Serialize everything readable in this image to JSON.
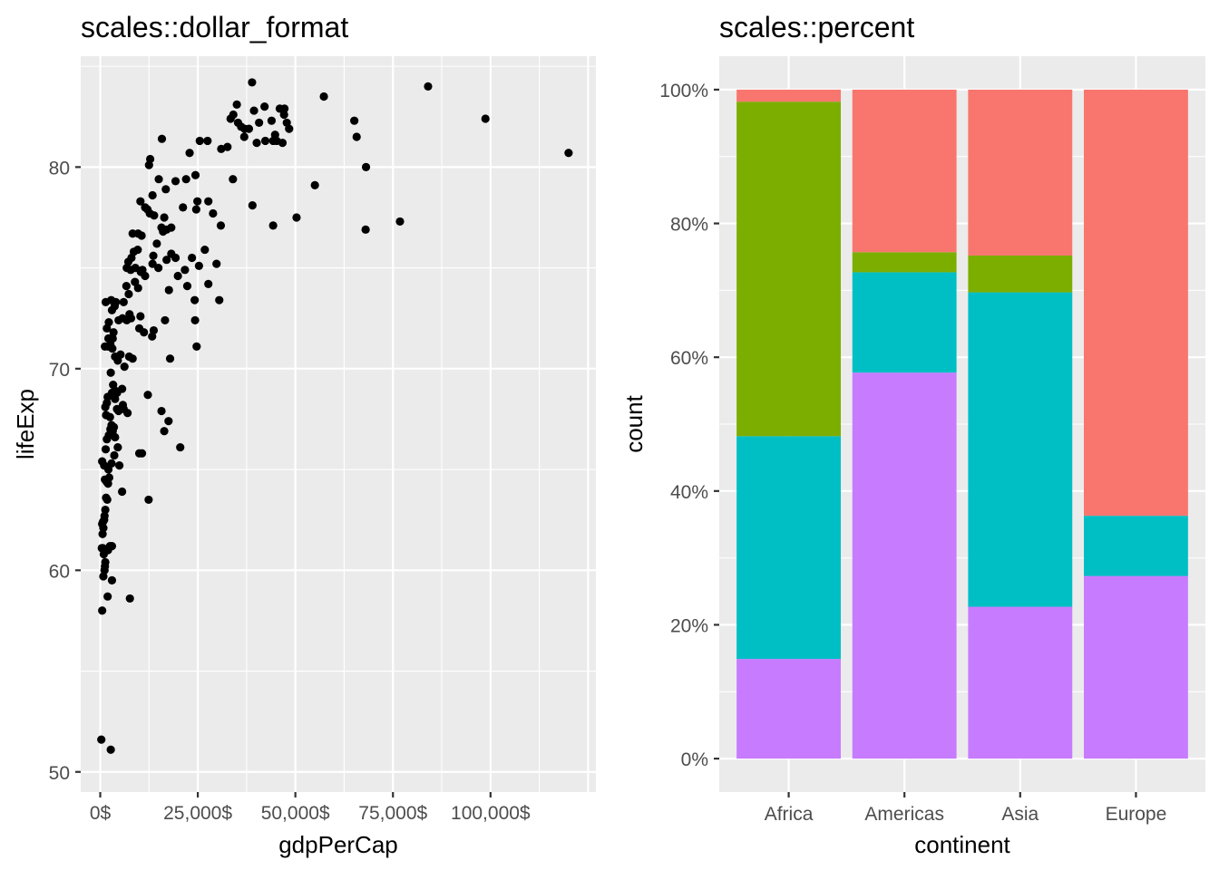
{
  "chart_data": [
    {
      "type": "scatter",
      "title": "scales::dollar_format",
      "xlabel": "gdpPerCap",
      "ylabel": "lifeExp",
      "xlim": [
        -5000,
        127000
      ],
      "ylim": [
        49,
        85.5
      ],
      "x_breaks": [
        0,
        25000,
        50000,
        75000,
        100000
      ],
      "x_tick_labels": [
        "0$",
        "25,000$",
        "50,000$",
        "75,000$",
        "100,000$"
      ],
      "y_breaks": [
        50,
        60,
        70,
        80
      ],
      "y_tick_labels": [
        "50",
        "60",
        "70",
        "80"
      ],
      "grid": true,
      "point_color": "#000000",
      "points": [
        [
          277,
          51.6
        ],
        [
          2700,
          51.1
        ],
        [
          500,
          58.0
        ],
        [
          3000,
          59.5
        ],
        [
          1900,
          58.7
        ],
        [
          7600,
          58.6
        ],
        [
          400,
          61.1
        ],
        [
          700,
          61.1
        ],
        [
          1100,
          60.0
        ],
        [
          1300,
          60.4
        ],
        [
          900,
          60.8
        ],
        [
          1600,
          61.0
        ],
        [
          2000,
          61.0
        ],
        [
          2500,
          61.2
        ],
        [
          3000,
          61.2
        ],
        [
          800,
          59.7
        ],
        [
          1200,
          60.2
        ],
        [
          600,
          61.8
        ],
        [
          800,
          62.1
        ],
        [
          1000,
          62.5
        ],
        [
          700,
          62.4
        ],
        [
          1100,
          62.7
        ],
        [
          500,
          62.3
        ],
        [
          1300,
          63.0
        ],
        [
          1800,
          63.5
        ],
        [
          1500,
          63.6
        ],
        [
          1200,
          64.5
        ],
        [
          1000,
          65.2
        ],
        [
          500,
          65.4
        ],
        [
          1600,
          64.4
        ],
        [
          2000,
          64.3
        ],
        [
          2300,
          64.6
        ],
        [
          2100,
          65.0
        ],
        [
          1400,
          66.0
        ],
        [
          1700,
          66.5
        ],
        [
          2200,
          66.7
        ],
        [
          2600,
          67.0
        ],
        [
          3200,
          66.9
        ],
        [
          3500,
          67.1
        ],
        [
          3800,
          66.6
        ],
        [
          2500,
          67.6
        ],
        [
          2900,
          67.2
        ],
        [
          1500,
          67.7
        ],
        [
          1300,
          68.1
        ],
        [
          1700,
          68.3
        ],
        [
          1900,
          68.6
        ],
        [
          3000,
          68.8
        ],
        [
          3800,
          68.5
        ],
        [
          4300,
          68.0
        ],
        [
          4700,
          67.9
        ],
        [
          5800,
          68.2
        ],
        [
          7000,
          67.8
        ],
        [
          6000,
          68.0
        ],
        [
          4500,
          66.1
        ],
        [
          4900,
          65.2
        ],
        [
          5600,
          63.9
        ],
        [
          10000,
          65.8
        ],
        [
          10700,
          65.8
        ],
        [
          12400,
          63.5
        ],
        [
          3600,
          65.7
        ],
        [
          2900,
          65.3
        ],
        [
          2700,
          69.8
        ],
        [
          3300,
          69.2
        ],
        [
          3900,
          68.9
        ],
        [
          4300,
          68.8
        ],
        [
          5600,
          69.0
        ],
        [
          6200,
          70.1
        ],
        [
          7400,
          70.6
        ],
        [
          8300,
          70.5
        ],
        [
          5200,
          70.7
        ],
        [
          4500,
          70.4
        ],
        [
          3800,
          70.6
        ],
        [
          3100,
          71.0
        ],
        [
          2100,
          71.5
        ],
        [
          2700,
          71.5
        ],
        [
          3200,
          71.5
        ],
        [
          2000,
          71.1
        ],
        [
          2600,
          71.2
        ],
        [
          3400,
          71.8
        ],
        [
          1200,
          71.1
        ],
        [
          1700,
          72.0
        ],
        [
          2200,
          72.3
        ],
        [
          3000,
          72.9
        ],
        [
          3700,
          73.1
        ],
        [
          2800,
          73.4
        ],
        [
          1400,
          73.3
        ],
        [
          4000,
          73.3
        ],
        [
          4700,
          72.4
        ],
        [
          5700,
          72.5
        ],
        [
          6800,
          72.4
        ],
        [
          7500,
          72.7
        ],
        [
          7900,
          72.5
        ],
        [
          10300,
          72.6
        ],
        [
          12200,
          68.7
        ],
        [
          11200,
          71.8
        ],
        [
          13700,
          71.9
        ],
        [
          13300,
          71.6
        ],
        [
          6000,
          73.3
        ],
        [
          7300,
          73.7
        ],
        [
          6700,
          74.1
        ],
        [
          7800,
          74.9
        ],
        [
          6800,
          75.0
        ],
        [
          8000,
          75.5
        ],
        [
          9000,
          75.0
        ],
        [
          7200,
          75.3
        ],
        [
          8600,
          75.8
        ],
        [
          9600,
          75.9
        ],
        [
          8300,
          76.7
        ],
        [
          9700,
          76.7
        ],
        [
          10600,
          76.6
        ],
        [
          8900,
          74.3
        ],
        [
          10400,
          74.8
        ],
        [
          9700,
          74.0
        ],
        [
          10800,
          74.9
        ],
        [
          11500,
          74.6
        ],
        [
          10000,
          72.0
        ],
        [
          10300,
          78.3
        ],
        [
          11500,
          78.0
        ],
        [
          12100,
          77.9
        ],
        [
          13400,
          78.6
        ],
        [
          12700,
          77.7
        ],
        [
          13800,
          77.6
        ],
        [
          15700,
          77.0
        ],
        [
          17000,
          76.9
        ],
        [
          18200,
          77.0
        ],
        [
          16400,
          77.5
        ],
        [
          16100,
          76.8
        ],
        [
          14500,
          76.2
        ],
        [
          13600,
          75.6
        ],
        [
          14900,
          75.0
        ],
        [
          13400,
          75.2
        ],
        [
          17000,
          75.4
        ],
        [
          18200,
          75.7
        ],
        [
          19300,
          75.5
        ],
        [
          19900,
          74.6
        ],
        [
          21700,
          74.9
        ],
        [
          22300,
          74.1
        ],
        [
          17600,
          73.9
        ],
        [
          16600,
          72.4
        ],
        [
          15700,
          67.9
        ],
        [
          16400,
          66.9
        ],
        [
          17500,
          67.4
        ],
        [
          17900,
          70.5
        ],
        [
          20500,
          66.1
        ],
        [
          24300,
          72.4
        ],
        [
          24700,
          71.1
        ],
        [
          24200,
          73.4
        ],
        [
          23500,
          75.5
        ],
        [
          25300,
          75.1
        ],
        [
          26800,
          75.9
        ],
        [
          27700,
          74.2
        ],
        [
          29800,
          75.2
        ],
        [
          30500,
          73.4
        ],
        [
          12500,
          80.1
        ],
        [
          12800,
          80.4
        ],
        [
          15000,
          79.4
        ],
        [
          16800,
          78.9
        ],
        [
          19300,
          79.3
        ],
        [
          22000,
          79.4
        ],
        [
          24400,
          79.6
        ],
        [
          25500,
          81.3
        ],
        [
          27500,
          81.3
        ],
        [
          22900,
          80.7
        ],
        [
          24600,
          77.9
        ],
        [
          27700,
          78.3
        ],
        [
          28900,
          77.7
        ],
        [
          30900,
          77.1
        ],
        [
          31000,
          80.9
        ],
        [
          32600,
          81.0
        ],
        [
          34000,
          79.4
        ],
        [
          21200,
          78.0
        ],
        [
          24900,
          78.3
        ],
        [
          15800,
          81.4
        ],
        [
          33400,
          82.4
        ],
        [
          34100,
          82.6
        ],
        [
          35000,
          83.1
        ],
        [
          36100,
          82.0
        ],
        [
          37000,
          81.9
        ],
        [
          38100,
          81.9
        ],
        [
          39400,
          82.8
        ],
        [
          40700,
          82.2
        ],
        [
          42300,
          81.3
        ],
        [
          43900,
          82.3
        ],
        [
          44800,
          81.6
        ],
        [
          46000,
          82.9
        ],
        [
          47100,
          82.6
        ],
        [
          47800,
          82.2
        ],
        [
          48400,
          81.9
        ],
        [
          46700,
          81.2
        ],
        [
          45200,
          81.3
        ],
        [
          44300,
          81.3
        ],
        [
          38900,
          84.2
        ],
        [
          35300,
          82.2
        ],
        [
          40100,
          81.2
        ],
        [
          42100,
          83.0
        ],
        [
          36900,
          81.5
        ],
        [
          47200,
          82.9
        ],
        [
          39000,
          78.1
        ],
        [
          44300,
          77.1
        ],
        [
          50300,
          77.5
        ],
        [
          55000,
          79.1
        ],
        [
          57300,
          83.5
        ],
        [
          65100,
          82.3
        ],
        [
          65700,
          81.5
        ],
        [
          68100,
          80.0
        ],
        [
          68000,
          76.9
        ],
        [
          76800,
          77.3
        ],
        [
          84000,
          84.0
        ],
        [
          98700,
          82.4
        ],
        [
          120000,
          80.7
        ]
      ]
    },
    {
      "type": "bar",
      "stacked": "fill",
      "title": "scales::percent",
      "xlabel": "continent",
      "ylabel": "count",
      "ylim": [
        -0.05,
        1.05
      ],
      "y_breaks": [
        0,
        0.2,
        0.4,
        0.6,
        0.8,
        1.0
      ],
      "y_tick_labels": [
        "0%",
        "20%",
        "40%",
        "60%",
        "80%",
        "100%"
      ],
      "grid": true,
      "legend": "none",
      "categories": [
        "Africa",
        "Americas",
        "Asia",
        "Europe"
      ],
      "series": [
        {
          "color": "#C77CFF",
          "values": [
            0.149,
            0.577,
            0.227,
            0.273
          ]
        },
        {
          "color": "#00BFC4",
          "values": [
            0.333,
            0.15,
            0.47,
            0.09
          ]
        },
        {
          "color": "#7CAE00",
          "values": [
            0.5,
            0.03,
            0.055,
            0.0
          ]
        },
        {
          "color": "#F8766D",
          "values": [
            0.018,
            0.243,
            0.248,
            0.637
          ]
        }
      ]
    }
  ]
}
